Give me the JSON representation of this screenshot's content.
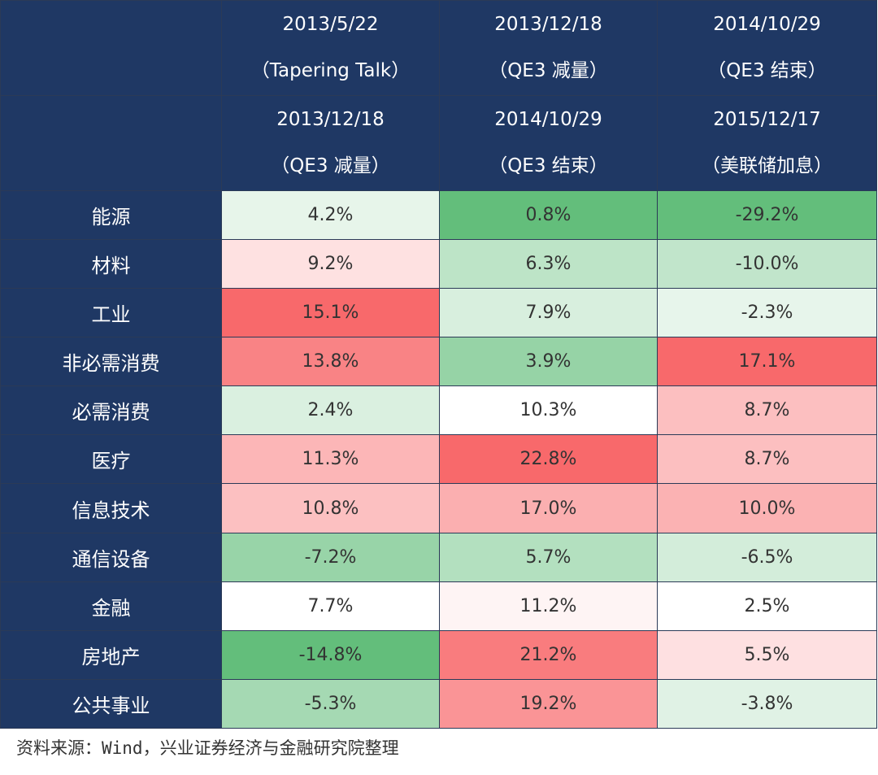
{
  "chart_data": {
    "type": "table",
    "title": "",
    "header_rows": [
      [
        {
          "line1": "2013/5/22",
          "line2": "（Tapering Talk）"
        },
        {
          "line1": "2013/12/18",
          "line2": "（QE3 减量）"
        },
        {
          "line1": "2014/10/29",
          "line2": "（QE3 结束）"
        }
      ],
      [
        {
          "line1": "2013/12/18",
          "line2": "（QE3 减量）"
        },
        {
          "line1": "2014/10/29",
          "line2": "（QE3 结束）"
        },
        {
          "line1": "2015/12/17",
          "line2": "（美联储加息）"
        }
      ]
    ],
    "sectors": [
      "能源",
      "材料",
      "工业",
      "非必需消费",
      "必需消费",
      "医疗",
      "信息技术",
      "通信设备",
      "金融",
      "房地产",
      "公共事业"
    ],
    "series": [
      {
        "name": "2013/5/22-2013/12/18",
        "values": [
          4.2,
          9.2,
          15.1,
          13.8,
          2.4,
          11.3,
          10.8,
          -7.2,
          7.7,
          -14.8,
          -5.3
        ]
      },
      {
        "name": "2013/12/18-2014/10/29",
        "values": [
          0.8,
          6.3,
          7.9,
          3.9,
          10.3,
          22.8,
          17.0,
          5.7,
          11.2,
          21.2,
          19.2
        ]
      },
      {
        "name": "2014/10/29-2015/12/17",
        "values": [
          -29.2,
          -10.0,
          -2.3,
          17.1,
          8.7,
          8.7,
          10.0,
          -6.5,
          2.5,
          5.5,
          -3.8
        ]
      }
    ],
    "value_format": "percent_1dp",
    "color_scale": {
      "negative": "#63be7b",
      "neutral": "#ffffff",
      "positive": "#f8696b"
    }
  },
  "source_note": "资料来源：Wind，兴业证券经济与金融研究院整理"
}
